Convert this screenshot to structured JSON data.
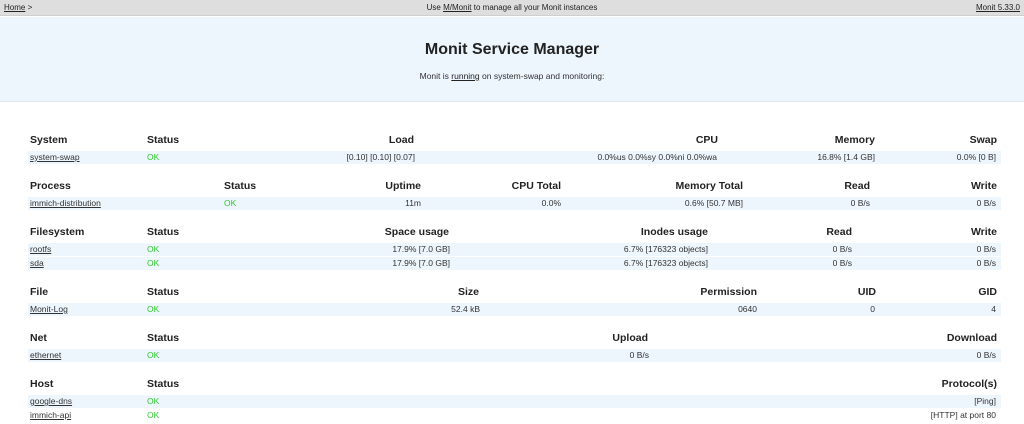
{
  "topbar": {
    "home_link": "Home",
    "breadcrumb_sep": ">",
    "msg_before": "Use ",
    "mmonit_link": "M/Monit",
    "msg_after": " to manage all your Monit instances",
    "version_link": "Monit 5.33.0"
  },
  "hero": {
    "title": "Monit Service Manager",
    "status_before": "Monit is ",
    "status_link": "running",
    "status_after": " on system-swap and monitoring:"
  },
  "system": {
    "headers": [
      "System",
      "Status",
      "Load",
      "CPU",
      "Memory",
      "Swap"
    ],
    "rows": [
      {
        "name": "system-swap",
        "status": "OK",
        "load": "[0.10] [0.10] [0.07]",
        "cpu": "0.0%us 0.0%sy 0.0%ni 0.0%wa",
        "memory": "16.8% [1.4 GB]",
        "swap": "0.0% [0 B]"
      }
    ]
  },
  "process": {
    "headers": [
      "Process",
      "Status",
      "Uptime",
      "CPU Total",
      "Memory Total",
      "Read",
      "Write"
    ],
    "rows": [
      {
        "name": "immich-distribution",
        "status": "OK",
        "uptime": "11m",
        "cpu_total": "0.0%",
        "memory_total": "0.6% [50.7 MB]",
        "read": "0 B/s",
        "write": "0 B/s"
      }
    ]
  },
  "filesystem": {
    "headers": [
      "Filesystem",
      "Status",
      "Space usage",
      "Inodes usage",
      "Read",
      "Write"
    ],
    "rows": [
      {
        "name": "rootfs",
        "status": "OK",
        "space": "17.9% [7.0 GB]",
        "inodes": "6.7% [176323 objects]",
        "read": "0 B/s",
        "write": "0 B/s"
      },
      {
        "name": "sda",
        "status": "OK",
        "space": "17.9% [7.0 GB]",
        "inodes": "6.7% [176323 objects]",
        "read": "0 B/s",
        "write": "0 B/s"
      }
    ]
  },
  "file": {
    "headers": [
      "File",
      "Status",
      "Size",
      "Permission",
      "UID",
      "GID"
    ],
    "rows": [
      {
        "name": "Monit-Log",
        "status": "OK",
        "size": "52.4 kB",
        "permission": "0640",
        "uid": "0",
        "gid": "4"
      }
    ]
  },
  "net": {
    "headers": [
      "Net",
      "Status",
      "Upload",
      "Download"
    ],
    "rows": [
      {
        "name": "ethernet",
        "status": "OK",
        "upload": "0 B/s",
        "download": "0 B/s"
      }
    ]
  },
  "host": {
    "headers": [
      "Host",
      "Status",
      "Protocol(s)"
    ],
    "rows": [
      {
        "name": "google-dns",
        "status": "OK",
        "protocols": "[Ping]"
      },
      {
        "name": "immich-api",
        "status": "OK",
        "protocols": "[HTTP] at port 80"
      }
    ]
  },
  "colors": {
    "ok": "#2fcb2f",
    "row_bg": "#edf5fd",
    "topbar_bg": "#dedede"
  }
}
